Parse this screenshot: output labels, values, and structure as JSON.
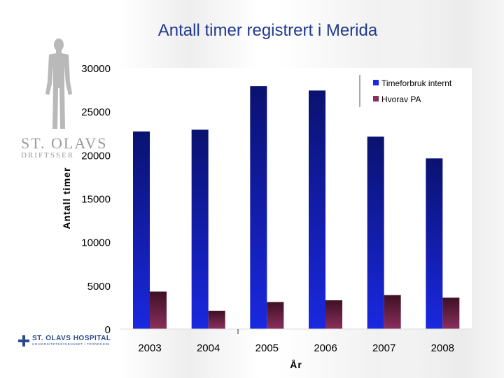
{
  "slide": {
    "title": "Antall timer registrert i Merida"
  },
  "branding": {
    "background_logo_name": "ST. OLAVS",
    "background_logo_sub": "DRIFTSSER",
    "hospital_name": "ST. OLAVS HOSPITAL",
    "hospital_sub": "UNIVERSITETSSYKEHUSET I TRONDHEIM"
  },
  "colors": {
    "series_internal": "#1a28e0",
    "series_internal_dark": "#0a1270",
    "series_pa": "#8a2f5c",
    "series_pa_dark": "#3e1024"
  },
  "chart_data": {
    "type": "bar",
    "title": "Antall timer registrert i Merida",
    "xlabel": "År",
    "ylabel": "Antall timer",
    "categories": [
      "2003",
      "2004",
      "2005",
      "2006",
      "2007",
      "2008"
    ],
    "series": [
      {
        "name": "Timeforbruk internt",
        "values": [
          22700,
          22900,
          27900,
          27400,
          22100,
          19600
        ]
      },
      {
        "name": "Hvorav PA",
        "values": [
          4300,
          2100,
          3100,
          3300,
          3900,
          3600
        ]
      }
    ],
    "ylim": [
      0,
      30000
    ],
    "yticks": [
      "0",
      "5000",
      "10000",
      "15000",
      "20000",
      "25000",
      "30000"
    ],
    "grid": false,
    "legend_position": "top-right"
  }
}
